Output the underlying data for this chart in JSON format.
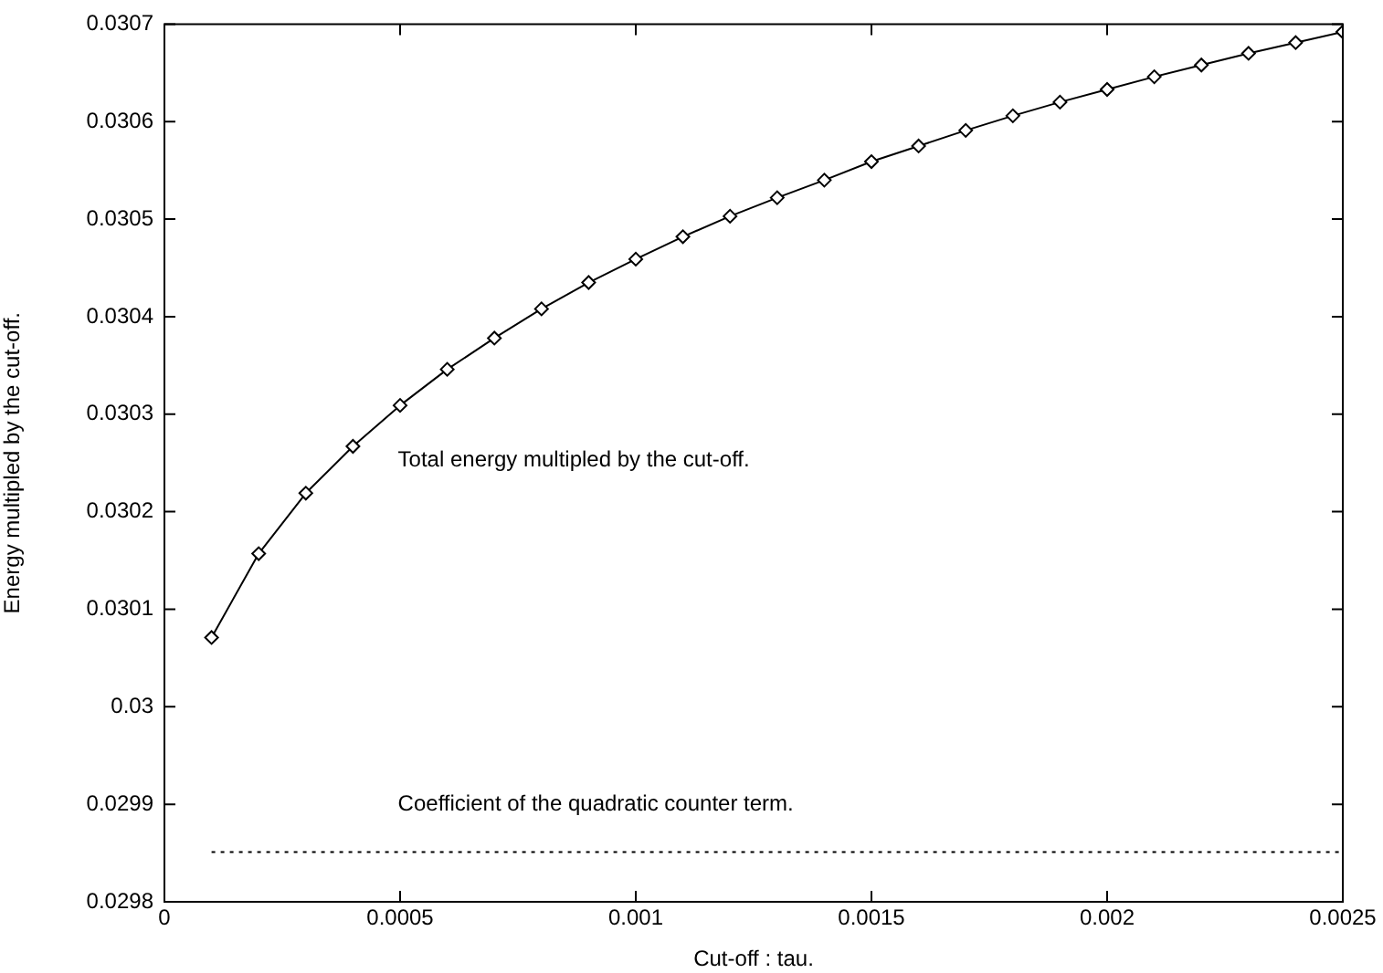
{
  "chart_data": {
    "type": "line",
    "xlabel": "Cut-off : tau.",
    "ylabel": "Energy multipled by the cut-off.",
    "series": [
      {
        "type": "line",
        "name": "Total energy multipled by the cut-off.",
        "color": "#000000",
        "marker": "diamond",
        "line_style": "solid",
        "x": [
          0.0001,
          0.0002,
          0.0003,
          0.0004,
          0.0005,
          0.0006,
          0.0007,
          0.0008,
          0.0009,
          0.001,
          0.0011,
          0.0012,
          0.0013,
          0.0014,
          0.0015,
          0.0016,
          0.0017,
          0.0018,
          0.0019,
          0.002,
          0.0021,
          0.0022,
          0.0023,
          0.0024,
          0.0025
        ],
        "values": [
          0.030071,
          0.030157,
          0.030219,
          0.030267,
          0.030309,
          0.030346,
          0.030378,
          0.030408,
          0.030435,
          0.030459,
          0.030482,
          0.030503,
          0.030522,
          0.03054,
          0.030559,
          0.030575,
          0.030591,
          0.030606,
          0.03062,
          0.030633,
          0.030646,
          0.030658,
          0.03067,
          0.030681,
          0.030692
        ]
      },
      {
        "type": "line",
        "name": "Coefficient of the quadratic counter term.",
        "color": "#000000",
        "marker": "none",
        "line_style": "dotted",
        "x": [
          0.0001,
          0.0025
        ],
        "values": [
          0.029851,
          0.029851
        ]
      }
    ],
    "xlim": [
      0,
      0.0025
    ],
    "xticks": [
      0,
      0.0005,
      0.001,
      0.0015,
      0.002,
      0.0025
    ],
    "ylim": [
      0.0298,
      0.0307
    ],
    "yticks": [
      0.0298,
      0.0299,
      0.03,
      0.0301,
      0.0302,
      0.0303,
      0.0304,
      0.0305,
      0.0306,
      0.0307
    ],
    "grid": false,
    "legend": false
  }
}
